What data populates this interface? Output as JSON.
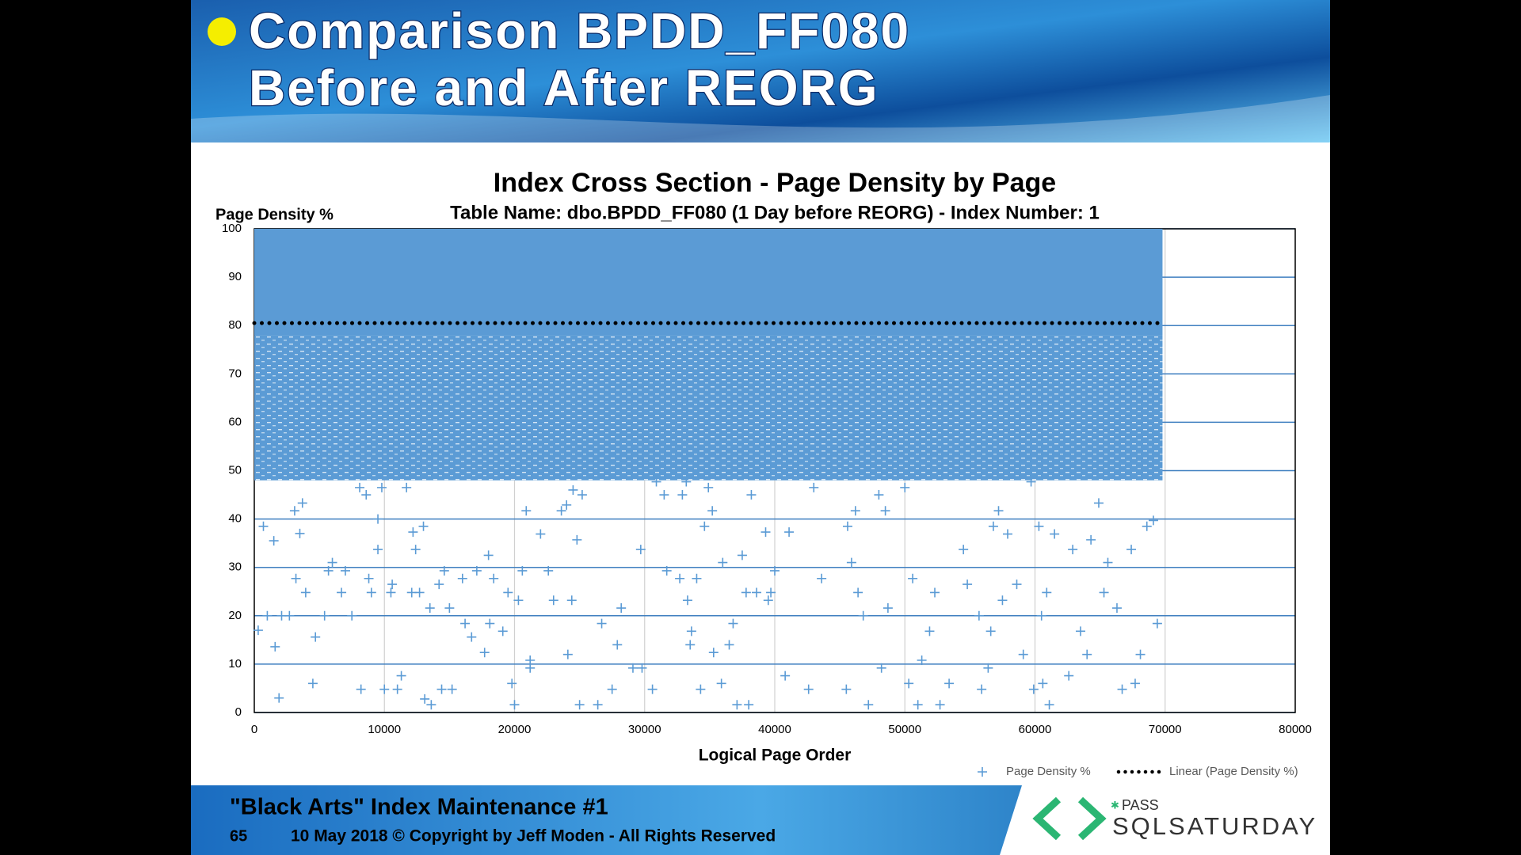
{
  "slide": {
    "title_lines": [
      "Comparison BPDD_FF080",
      "Before and After REORG"
    ],
    "footer_title": "\"Black Arts\" Index Maintenance #1",
    "page_number": "65",
    "copyright": "10 May 2018 © Copyright by Jeff Moden - All Rights Reserved",
    "logo_small": "PASS",
    "logo_text": "SQLSATURDAY"
  },
  "chart_data": {
    "type": "scatter",
    "title": "Index Cross Section - Page Density by Page",
    "subtitle": "Table Name: dbo.BPDD_FF080 (1 Day before REORG) - Index Number: 1",
    "ylabel": "Page Density %",
    "xlabel": "Logical Page Order",
    "xlim": [
      0,
      80000
    ],
    "ylim": [
      0,
      100
    ],
    "xticks": [
      0,
      10000,
      20000,
      30000,
      40000,
      50000,
      60000,
      70000,
      80000
    ],
    "yticks": [
      0,
      10,
      20,
      30,
      40,
      50,
      60,
      70,
      80,
      90,
      100
    ],
    "grid": true,
    "legend": "bottom right",
    "series": [
      {
        "name": "Page Density %",
        "color": "#5b9bd5",
        "marker": "+",
        "x": [
          300,
          700,
          1000,
          1500,
          1600,
          1900,
          2100,
          2700,
          3100,
          3200,
          3500,
          3700,
          3950,
          4500,
          4700,
          5400,
          5700,
          6000,
          6700,
          7000,
          7500,
          8100,
          8200,
          8600,
          8800,
          9000,
          9500,
          9500,
          9800,
          10000,
          10500,
          10600,
          11000,
          11300,
          11700,
          12100,
          12200,
          12400,
          12700,
          13000,
          13100,
          13500,
          13600,
          14200,
          14400,
          14600,
          15000,
          15200,
          16000,
          16200,
          16700,
          17100,
          17700,
          18000,
          18100,
          18400,
          19100,
          19500,
          19800,
          20000,
          20300,
          20600,
          20900,
          21200,
          21200,
          22000,
          22600,
          23000,
          23600,
          24000,
          24100,
          24400,
          24500,
          24800,
          25000,
          25200,
          26400,
          26700,
          27500,
          27900,
          28200,
          29100,
          29700,
          29800,
          30600,
          30900,
          31500,
          31700,
          32700,
          32900,
          33200,
          33300,
          33500,
          33600,
          34000,
          34300,
          34600,
          34900,
          35200,
          35300,
          35900,
          36000,
          36500,
          36800,
          37100,
          37500,
          37800,
          38000,
          38200,
          38600,
          39300,
          39500,
          39700,
          40000,
          40800,
          41100,
          42600,
          43000,
          43600,
          45500,
          45600,
          45900,
          46200,
          46400,
          46800,
          47200,
          48000,
          48200,
          48500,
          48700,
          50000,
          50300,
          50600,
          51000,
          51300,
          51900,
          52300,
          52700,
          53400,
          54500,
          54800,
          55700,
          55900,
          56400,
          56600,
          56800,
          57200,
          57500,
          57900,
          58600,
          59100,
          59700,
          59900,
          60300,
          60500,
          60600,
          60900,
          61100,
          61500,
          62600,
          62900,
          63500,
          64000,
          64300,
          64900,
          65300,
          65600,
          66300,
          66700,
          67400,
          67700,
          68100,
          68600,
          69100,
          69400
        ],
        "values": [
          17,
          38.5,
          20,
          35.5,
          13.6,
          3,
          20,
          20,
          41.7,
          27.7,
          37,
          43.3,
          24.8,
          6,
          15.6,
          20,
          29.3,
          31,
          24.8,
          29.3,
          20,
          46.5,
          4.8,
          45,
          27.7,
          24.8,
          33.7,
          40,
          46.5,
          4.8,
          24.8,
          26.5,
          4.8,
          7.6,
          46.5,
          24.8,
          37.3,
          33.7,
          24.8,
          38.5,
          2.8,
          21.6,
          1.6,
          26.5,
          4.8,
          29.3,
          21.6,
          4.8,
          27.7,
          18.4,
          15.6,
          29.3,
          12.4,
          32.5,
          18.4,
          27.7,
          16.8,
          24.8,
          6,
          1.6,
          23.2,
          29.3,
          41.7,
          10.8,
          9.2,
          36.9,
          29.3,
          23.2,
          41.7,
          42.9,
          12,
          23.2,
          46,
          35.7,
          1.6,
          45,
          1.6,
          18.4,
          4.8,
          14,
          21.6,
          9.2,
          33.7,
          9.2,
          4.8,
          47.7,
          45,
          29.3,
          27.7,
          45,
          47.7,
          23.2,
          14,
          16.8,
          27.7,
          4.8,
          38.5,
          46.5,
          41.7,
          12.4,
          6,
          31,
          14,
          18.4,
          1.6,
          32.5,
          24.8,
          1.6,
          45,
          24.8,
          37.3,
          23.2,
          24.8,
          29.3,
          7.6,
          37.3,
          4.8,
          46.5,
          27.7,
          4.8,
          38.5,
          31,
          41.7,
          24.8,
          20,
          1.6,
          45,
          9.2,
          41.7,
          21.6,
          46.5,
          6,
          27.7,
          1.6,
          10.8,
          16.8,
          24.8,
          1.6,
          6,
          33.7,
          26.5,
          20,
          4.8,
          9.2,
          16.8,
          38.5,
          41.7,
          23.2,
          36.9,
          26.5,
          12,
          47.7,
          4.8,
          38.5,
          20,
          6,
          24.8,
          1.6,
          36.9,
          7.6,
          33.7,
          16.8,
          12,
          35.7,
          43.3,
          24.8,
          31,
          21.6,
          4.8,
          33.7,
          6,
          12,
          38.5,
          39.7,
          18.4
        ]
      },
      {
        "name": "Linear (Page Density %)",
        "type": "line",
        "style": "dotted",
        "color": "#000000",
        "x": [
          0,
          69700
        ],
        "values": [
          80.5,
          80.5
        ]
      }
    ]
  }
}
